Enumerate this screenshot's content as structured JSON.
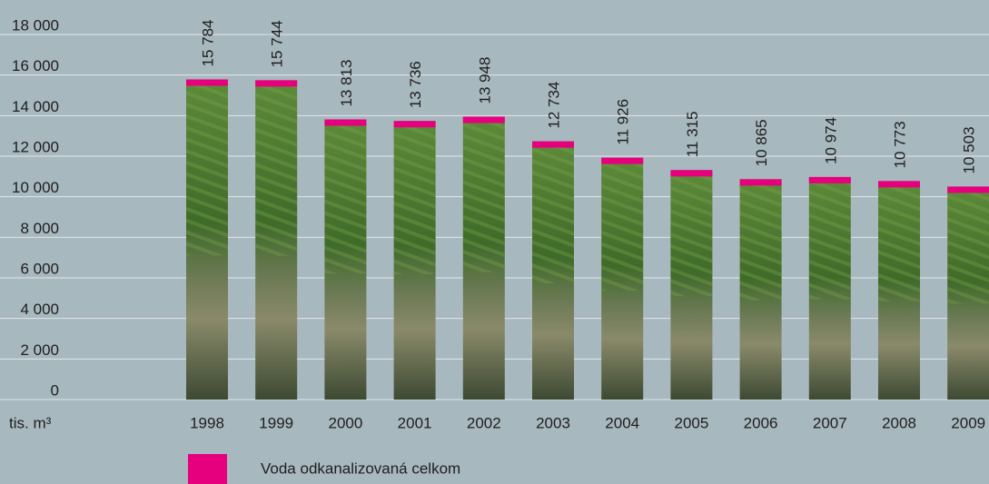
{
  "chart_data": {
    "type": "bar",
    "y_axis_label": "tis. m³",
    "categories": [
      "1998",
      "1999",
      "2000",
      "2001",
      "2002",
      "2003",
      "2004",
      "2005",
      "2006",
      "2007",
      "2008",
      "2009"
    ],
    "series": [
      {
        "name": "Voda odkanalizovaná celkom",
        "color": "#e6007e",
        "values": [
          15784,
          15744,
          13813,
          13736,
          13948,
          12734,
          11926,
          11315,
          10865,
          10974,
          10773,
          10503
        ],
        "value_labels": [
          "15 784",
          "15 744",
          "13 813",
          "13 736",
          "13 948",
          "12 734",
          "11 926",
          "11 315",
          "10 865",
          "10 974",
          "10 773",
          "10 503"
        ]
      }
    ],
    "ylim": [
      0,
      18000
    ],
    "yticks": [
      0,
      {
        "value": 2000,
        "label": "2 000"
      },
      {
        "value": 4000,
        "label": "4 000"
      },
      {
        "value": 6000,
        "label": "6 000"
      },
      {
        "value": 8000,
        "label": "8 000"
      },
      {
        "value": 10000,
        "label": "10 000"
      },
      {
        "value": 12000,
        "label": "12 000"
      },
      {
        "value": 14000,
        "label": "14 000"
      },
      {
        "value": 16000,
        "label": "16 000"
      },
      {
        "value": 18000,
        "label": "18 000"
      }
    ],
    "grid": true
  }
}
